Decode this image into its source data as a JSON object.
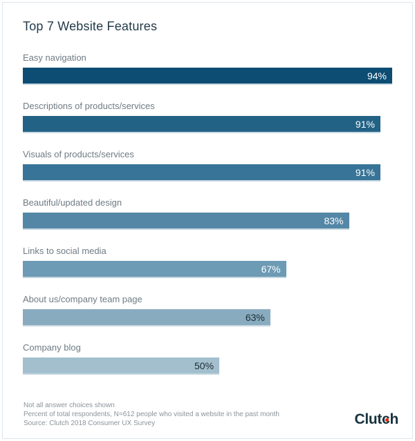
{
  "header": {
    "title": "Top 7 Website Features"
  },
  "chart_data": {
    "type": "bar",
    "orientation": "horizontal",
    "title": "Top 7 Website Features",
    "categories": [
      "Easy navigation",
      "Descriptions of products/services",
      "Visuals of products/services",
      "Beautiful/updated design",
      "Links to social media",
      "About us/company team page",
      "Company blog"
    ],
    "values": [
      94,
      91,
      91,
      83,
      67,
      63,
      50
    ],
    "value_suffix": "%",
    "xlim": [
      0,
      100
    ],
    "grid": false,
    "legend": "none",
    "bar_colors": [
      "#0d4d73",
      "#22628 5",
      "#387497",
      "#5487a6",
      "#6d9ab4",
      "#89abbf",
      "#a3bfce"
    ],
    "value_label_colors": [
      "#ffffff",
      "#ffffff",
      "#ffffff",
      "#ffffff",
      "#ffffff",
      "#1b2b33",
      "#1b2b33"
    ]
  },
  "footer": {
    "notes": [
      "Not all answer choices shown",
      "Percent of total respondents, N=612 people who visited a website in the past month",
      "Source: Clutch 2018 Consumer UX Survey"
    ],
    "logo": {
      "text_before_dot_c": "Clut",
      "dot_c": "c",
      "text_after_dot_c": "h",
      "text_color": "#16323e",
      "dot_color": "#e8250c"
    }
  }
}
